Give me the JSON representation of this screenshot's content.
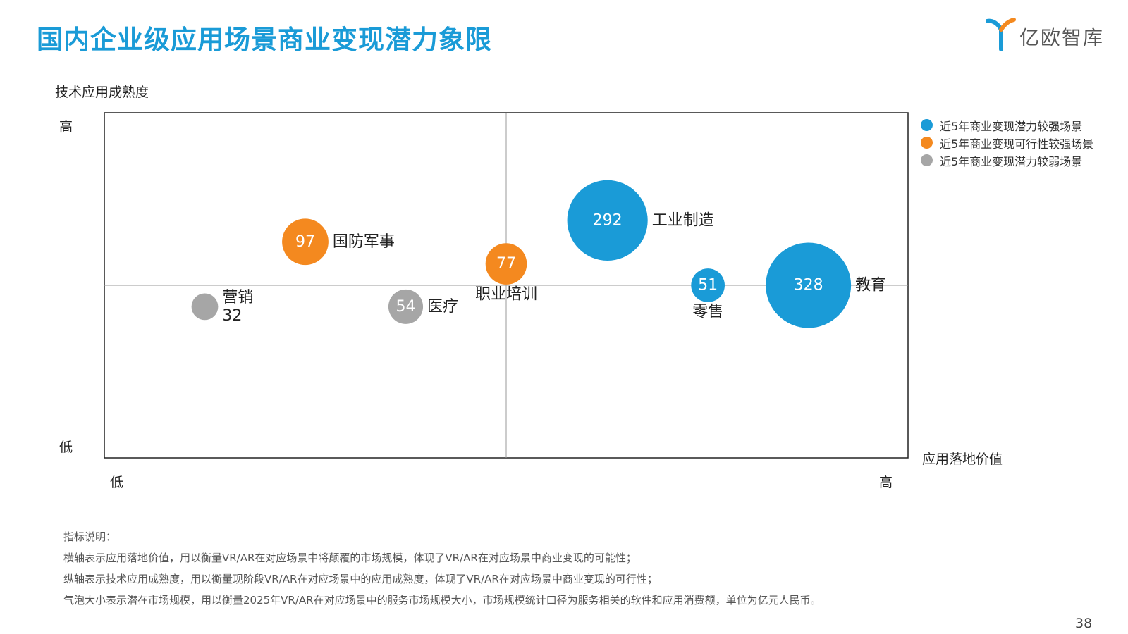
{
  "title": "国内企业级应用场景商业变现潜力象限",
  "logo_text": "亿欧智库",
  "page_number": "38",
  "colors": {
    "blue": "#1a9bd7",
    "orange": "#f4891f",
    "gray": "#a6a6a6",
    "title": "#1a9bd7"
  },
  "legend": [
    {
      "label": "近5年商业变现潜力较强场景",
      "color": "#1a9bd7"
    },
    {
      "label": "近5年商业变现可行性较强场景",
      "color": "#f4891f"
    },
    {
      "label": "近5年商业变现潜力较弱场景",
      "color": "#a6a6a6"
    }
  ],
  "notes": [
    "指标说明：",
    "横轴表示应用落地价值，用以衡量VR/AR在对应场景中将颠覆的市场规模，体现了VR/AR在对应场景中商业变现的可能性；",
    "纵轴表示技术应用成熟度，用以衡量现阶段VR/AR在对应场景中的应用成熟度，体现了VR/AR在对应场景中商业变现的可行性；",
    "气泡大小表示潜在市场规模，用以衡量2025年VR/AR在对应场景中的服务市场规模大小，市场规模统计口径为服务相关的软件和应用消费额，单位为亿元人民币。"
  ],
  "chart_data": {
    "type": "scatter",
    "subtype": "bubble",
    "xlabel": "应用落地价值",
    "ylabel": "技术应用成熟度",
    "x_low": "低",
    "x_high": "高",
    "y_low": "低",
    "y_high": "高",
    "xlim": [
      0,
      1
    ],
    "ylim": [
      0,
      1
    ],
    "quadrant_split": {
      "x": 0.5,
      "y": 0.5
    },
    "grid": false,
    "legend_position": "right",
    "points": [
      {
        "name": "营销",
        "x": 0.125,
        "y": 0.438,
        "size": 32,
        "category": "gray",
        "label_pos": "stack-right"
      },
      {
        "name": "国防军事",
        "x": 0.25,
        "y": 0.626,
        "size": 97,
        "category": "orange",
        "label_pos": "right"
      },
      {
        "name": "医疗",
        "x": 0.375,
        "y": 0.438,
        "size": 54,
        "category": "gray",
        "label_pos": "right"
      },
      {
        "name": "职业培训",
        "x": 0.5,
        "y": 0.562,
        "size": 77,
        "category": "orange",
        "label_pos": "below"
      },
      {
        "name": "工业制造",
        "x": 0.626,
        "y": 0.688,
        "size": 292,
        "category": "blue",
        "label_pos": "right"
      },
      {
        "name": "零售",
        "x": 0.751,
        "y": 0.5,
        "size": 51,
        "category": "blue",
        "label_pos": "below"
      },
      {
        "name": "教育",
        "x": 0.876,
        "y": 0.5,
        "size": 328,
        "category": "blue",
        "label_pos": "right"
      }
    ]
  }
}
